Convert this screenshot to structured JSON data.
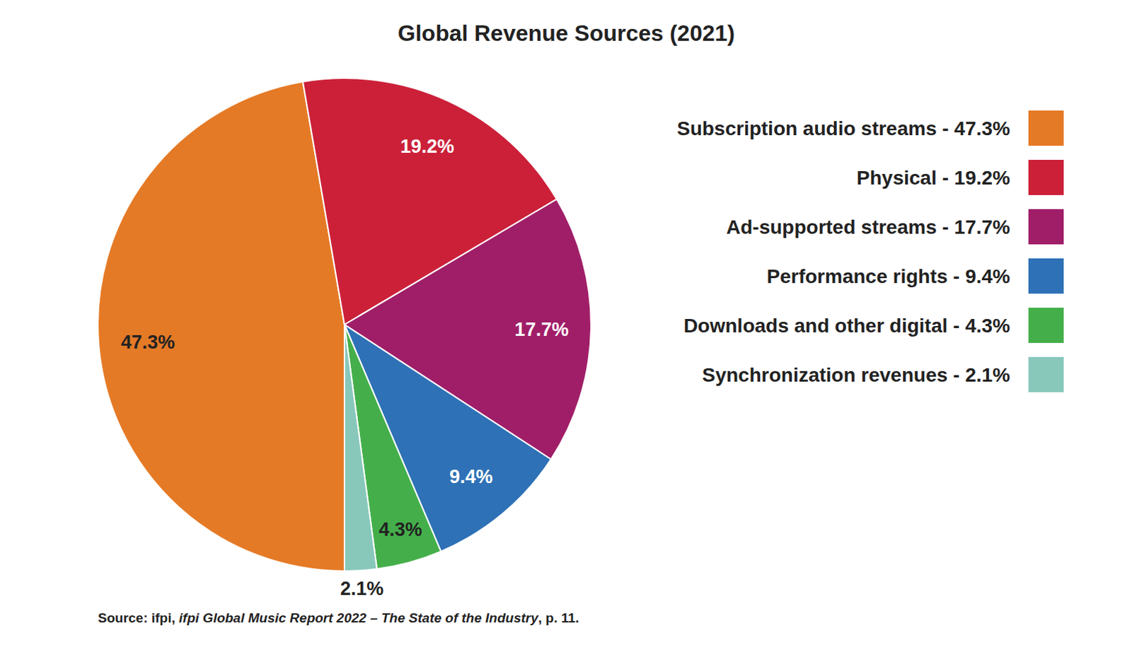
{
  "chart_data": {
    "type": "pie",
    "title": "Global Revenue Sources (2021)",
    "categories": [
      "Subscription audio streams - 47.3%",
      "Physical - 19.2%",
      "Ad-supported streams - 17.7%",
      "Performance rights - 9.4%",
      "Downloads and other digital - 4.3%",
      "Synchronization revenues - 2.1%"
    ],
    "values": [
      47.3,
      19.2,
      17.7,
      9.4,
      4.3,
      2.1
    ],
    "value_labels": [
      "47.3%",
      "19.2%",
      "17.7%",
      "9.4%",
      "4.3%",
      "2.1%"
    ],
    "colors": [
      "#e57a26",
      "#cc2039",
      "#a01e68",
      "#2e71b6",
      "#44af4a",
      "#88c8bb"
    ],
    "data_labels": true,
    "legend": "right",
    "source": [
      "Source: ifpi, ",
      "ifpi Global Music Report 2022 – The State of the Industry",
      ", p. 11."
    ]
  }
}
